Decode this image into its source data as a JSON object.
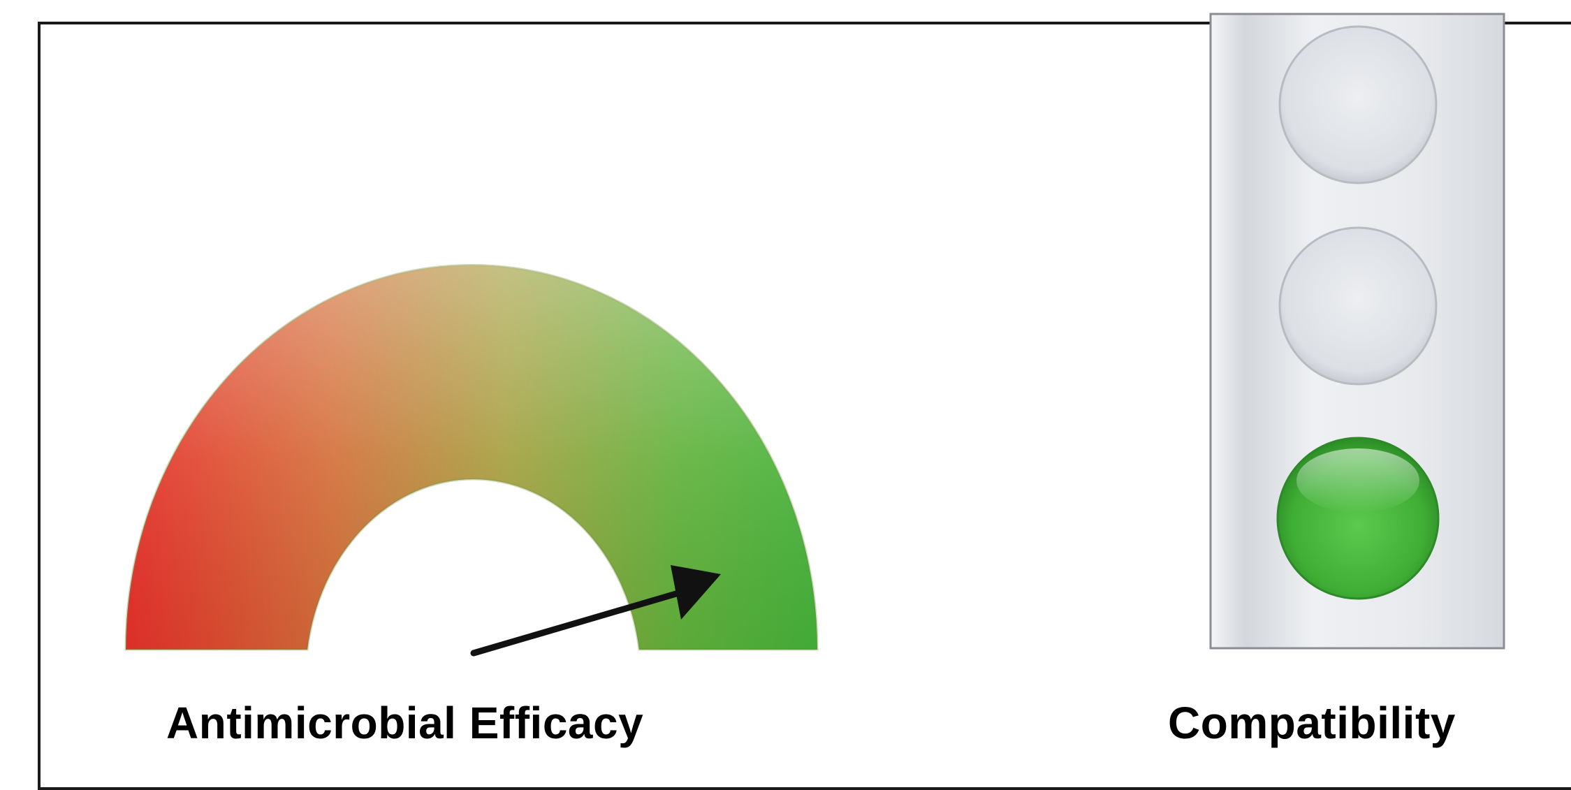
{
  "gauge": {
    "label": "Antimicrobial Efficacy",
    "level_fraction": 0.83,
    "colors": {
      "low": "#e8302a",
      "mid": "#b78a3a",
      "high": "#4cb33a"
    }
  },
  "traffic_light": {
    "label": "Compatibility",
    "active_index": 2,
    "lamp_count": 3,
    "colors": {
      "off": "#e4e6ea",
      "on": "#48b63d",
      "housing": "#eceef1"
    }
  }
}
